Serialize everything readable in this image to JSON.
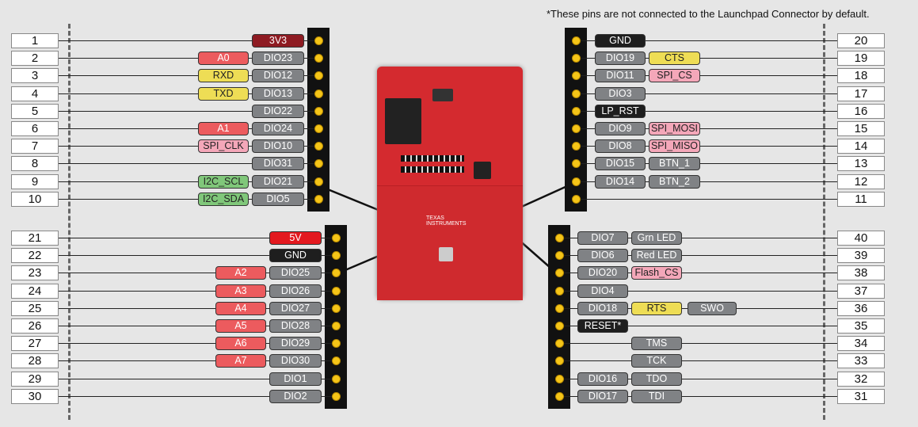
{
  "note": "*These pins are not connected to the Launchpad Connector by default.",
  "colors": {
    "gray": "#808285",
    "red": "#ec5b5e",
    "darkred": "#8e1b22",
    "brightred": "#e3191f",
    "yellow": "#eedd55",
    "pink": "#f4a7b9",
    "green": "#80c77a",
    "black": "#1e1e1e",
    "header_dot": "#f5c518",
    "board": "#d42a2f"
  },
  "groups": [
    {
      "side": "left",
      "block": "top",
      "pins": [
        {
          "num": "1",
          "labels": [
            {
              "text": "3V3",
              "color": "darkred"
            }
          ]
        },
        {
          "num": "2",
          "labels": [
            {
              "text": "DIO23",
              "color": "gray"
            },
            {
              "text": "A0",
              "color": "red"
            }
          ]
        },
        {
          "num": "3",
          "labels": [
            {
              "text": "DIO12",
              "color": "gray"
            },
            {
              "text": "RXD",
              "color": "yellow"
            }
          ]
        },
        {
          "num": "4",
          "labels": [
            {
              "text": "DIO13",
              "color": "gray"
            },
            {
              "text": "TXD",
              "color": "yellow"
            }
          ]
        },
        {
          "num": "5",
          "labels": [
            {
              "text": "DIO22",
              "color": "gray"
            }
          ]
        },
        {
          "num": "6",
          "labels": [
            {
              "text": "DIO24",
              "color": "gray"
            },
            {
              "text": "A1",
              "color": "red"
            }
          ]
        },
        {
          "num": "7",
          "labels": [
            {
              "text": "DIO10",
              "color": "gray"
            },
            {
              "text": "SPI_CLK",
              "color": "pink"
            }
          ]
        },
        {
          "num": "8",
          "labels": [
            {
              "text": "DIO31",
              "color": "gray"
            }
          ]
        },
        {
          "num": "9",
          "labels": [
            {
              "text": "DIO21",
              "color": "gray"
            },
            {
              "text": "I2C_SCL",
              "color": "green"
            }
          ]
        },
        {
          "num": "10",
          "labels": [
            {
              "text": "DIO5",
              "color": "gray"
            },
            {
              "text": "I2C_SDA",
              "color": "green"
            }
          ]
        }
      ]
    },
    {
      "side": "left",
      "block": "bottom",
      "pins": [
        {
          "num": "21",
          "labels": [
            {
              "text": "5V",
              "color": "brightred"
            }
          ]
        },
        {
          "num": "22",
          "labels": [
            {
              "text": "GND",
              "color": "black"
            }
          ]
        },
        {
          "num": "23",
          "labels": [
            {
              "text": "DIO25",
              "color": "gray"
            },
            {
              "text": "A2",
              "color": "red"
            }
          ]
        },
        {
          "num": "24",
          "labels": [
            {
              "text": "DIO26",
              "color": "gray"
            },
            {
              "text": "A3",
              "color": "red"
            }
          ]
        },
        {
          "num": "25",
          "labels": [
            {
              "text": "DIO27",
              "color": "gray"
            },
            {
              "text": "A4",
              "color": "red"
            }
          ]
        },
        {
          "num": "26",
          "labels": [
            {
              "text": "DIO28",
              "color": "gray"
            },
            {
              "text": "A5",
              "color": "red"
            }
          ]
        },
        {
          "num": "27",
          "labels": [
            {
              "text": "DIO29",
              "color": "gray"
            },
            {
              "text": "A6",
              "color": "red"
            }
          ]
        },
        {
          "num": "28",
          "labels": [
            {
              "text": "DIO30",
              "color": "gray"
            },
            {
              "text": "A7",
              "color": "red"
            }
          ]
        },
        {
          "num": "29",
          "labels": [
            {
              "text": "DIO1",
              "color": "gray"
            }
          ]
        },
        {
          "num": "30",
          "labels": [
            {
              "text": "DIO2",
              "color": "gray"
            }
          ]
        }
      ]
    },
    {
      "side": "right",
      "block": "top",
      "pins": [
        {
          "num": "20",
          "labels": [
            {
              "text": "GND",
              "color": "black"
            }
          ]
        },
        {
          "num": "19",
          "labels": [
            {
              "text": "DIO19",
              "color": "gray"
            },
            {
              "text": "CTS",
              "color": "yellow"
            }
          ]
        },
        {
          "num": "18",
          "labels": [
            {
              "text": "DIO11",
              "color": "gray"
            },
            {
              "text": "SPI_CS",
              "color": "pink"
            }
          ]
        },
        {
          "num": "17",
          "labels": [
            {
              "text": "DIO3",
              "color": "gray"
            }
          ]
        },
        {
          "num": "16",
          "labels": [
            {
              "text": "LP_RST",
              "color": "black"
            }
          ]
        },
        {
          "num": "15",
          "labels": [
            {
              "text": "DIO9",
              "color": "gray"
            },
            {
              "text": "SPI_MOSI",
              "color": "pink"
            }
          ]
        },
        {
          "num": "14",
          "labels": [
            {
              "text": "DIO8",
              "color": "gray"
            },
            {
              "text": "SPI_MISO",
              "color": "pink"
            }
          ]
        },
        {
          "num": "13",
          "labels": [
            {
              "text": "DIO15",
              "color": "gray"
            },
            {
              "text": "BTN_1",
              "color": "gray"
            }
          ]
        },
        {
          "num": "12",
          "labels": [
            {
              "text": "DIO14",
              "color": "gray"
            },
            {
              "text": "BTN_2",
              "color": "gray"
            }
          ]
        },
        {
          "num": "11",
          "labels": []
        }
      ]
    },
    {
      "side": "right",
      "block": "bottom",
      "pins": [
        {
          "num": "40",
          "labels": [
            {
              "text": "DIO7",
              "color": "gray"
            },
            {
              "text": "Grn LED",
              "color": "gray"
            }
          ]
        },
        {
          "num": "39",
          "labels": [
            {
              "text": "DIO6",
              "color": "gray"
            },
            {
              "text": "Red LED",
              "color": "gray"
            }
          ]
        },
        {
          "num": "38",
          "labels": [
            {
              "text": "DIO20",
              "color": "gray"
            },
            {
              "text": "Flash_CS",
              "color": "pink"
            }
          ]
        },
        {
          "num": "37",
          "labels": [
            {
              "text": "DIO4",
              "color": "gray"
            }
          ]
        },
        {
          "num": "36",
          "labels": [
            {
              "text": "DIO18",
              "color": "gray"
            },
            {
              "text": "RTS",
              "color": "yellow"
            },
            {
              "text": "SWO",
              "color": "gray"
            }
          ]
        },
        {
          "num": "35",
          "labels": [
            {
              "text": "RESET*",
              "color": "black"
            }
          ]
        },
        {
          "num": "34",
          "labels": [
            null,
            {
              "text": "TMS",
              "color": "gray"
            }
          ]
        },
        {
          "num": "33",
          "labels": [
            null,
            {
              "text": "TCK",
              "color": "gray"
            }
          ]
        },
        {
          "num": "32",
          "labels": [
            {
              "text": "DIO16",
              "color": "gray"
            },
            {
              "text": "TDO",
              "color": "gray"
            }
          ]
        },
        {
          "num": "31",
          "labels": [
            {
              "text": "DIO17",
              "color": "gray"
            },
            {
              "text": "TDI",
              "color": "gray"
            }
          ]
        }
      ]
    }
  ],
  "board": {
    "brand": "TEXAS INSTRUMENTS"
  }
}
